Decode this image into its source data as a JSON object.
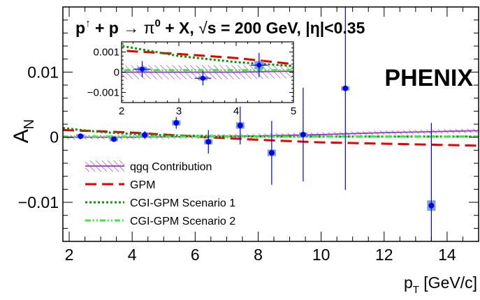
{
  "chart_data": {
    "type": "scatter",
    "title": "p↑ + p → π⁰ + X,  √s = 200 GeV, |η|<0.35",
    "title_parts": {
      "p": "p",
      "arrow_sup": "↑",
      "plus1": " + p ",
      "reaction_arrow": "→",
      "pi": " π",
      "pi_sup": "0",
      "rest": " + X,  ",
      "sqrt": "√",
      "energy": "s = 200 GeV, |η|<0.35"
    },
    "experiment_label": "PHENIX",
    "ylabel": "A",
    "ylabel_sub": "N",
    "xlabel": "p",
    "xlabel_sub": "T",
    "xlabel_unit": " [GeV/c]",
    "xlim": [
      1.8,
      15.0
    ],
    "ylim": [
      -0.016,
      0.02
    ],
    "xticks": [
      2,
      4,
      6,
      8,
      10,
      12,
      14
    ],
    "xtick_labels": [
      "2",
      "4",
      "6",
      "8",
      "10",
      "12",
      "14"
    ],
    "yticks": [
      -0.01,
      0,
      0.01
    ],
    "ytick_labels": [
      "−0.01",
      "0",
      "0.01"
    ],
    "data": {
      "name": "PHENIX",
      "color": "#0000ee",
      "sys_color": "#7b9fd0",
      "points": [
        {
          "x": 2.36,
          "y": 0.00015,
          "err": 0.0004,
          "sys": 0.00012
        },
        {
          "x": 3.42,
          "y": -0.0003,
          "err": 0.00035,
          "sys": 0.0001
        },
        {
          "x": 4.4,
          "y": 0.00035,
          "err": 0.0006,
          "sys": 0.0002
        },
        {
          "x": 5.4,
          "y": 0.0022,
          "err": 0.0009,
          "sys": 0.0004
        },
        {
          "x": 6.42,
          "y": -0.0007,
          "err": 0.0018,
          "sys": 0.0004
        },
        {
          "x": 7.43,
          "y": 0.0018,
          "err": 0.0029,
          "sys": 0.0005
        },
        {
          "x": 8.43,
          "y": -0.0024,
          "err": 0.0049,
          "sys": 0.0005
        },
        {
          "x": 9.43,
          "y": 0.0004,
          "err": 0.0072,
          "sys": 0.0003
        },
        {
          "x": 10.77,
          "y": 0.0075,
          "err": 0.0156,
          "sys": 0.0003
        },
        {
          "x": 13.5,
          "y": -0.0105,
          "err": 0.0127,
          "sys": 0.0008
        }
      ]
    },
    "curves": [
      {
        "name": "qgq Contribution",
        "color": "#9932cc",
        "style": "hatched-band",
        "x": [
          1.8,
          4,
          6,
          8,
          10,
          12,
          15
        ],
        "y": [
          0.0,
          0.0,
          0.0001,
          0.0002,
          0.0004,
          0.0007,
          0.001
        ],
        "band": 0.00035
      },
      {
        "name": "GPM",
        "color": "#e60000",
        "style": "long-dash",
        "x": [
          1.8,
          3,
          4,
          5,
          6,
          8,
          10,
          12,
          15
        ],
        "y": [
          0.0011,
          0.0009,
          0.0007,
          0.0004,
          0.0001,
          -0.0004,
          -0.0008,
          -0.001,
          -0.0013
        ]
      },
      {
        "name": "CGI-GPM Scenario 1",
        "color": "#009900",
        "style": "dotted",
        "x": [
          1.8,
          3,
          4,
          5,
          6,
          8,
          10,
          12,
          15
        ],
        "y": [
          0.0014,
          0.0008,
          0.0005,
          0.0003,
          0.0002,
          0.0001,
          0.0001,
          0.0001,
          0.0001
        ]
      },
      {
        "name": "CGI-GPM Scenario 2",
        "color": "#33ee33",
        "style": "dash-dot-dot",
        "x": [
          1.8,
          3,
          4,
          5,
          6,
          8,
          10,
          12,
          15
        ],
        "y": [
          0.0001,
          0.0001,
          0.0001,
          0.0001,
          0.0001,
          0.0001,
          0.0001,
          0.0001,
          0.0001
        ]
      }
    ],
    "legend": {
      "placement": "bottom-left",
      "entries": [
        "qgq Contribution",
        "GPM",
        "CGI-GPM Scenario 1",
        "CGI-GPM Scenario 2"
      ]
    },
    "inset": {
      "xlim": [
        2.0,
        5.0
      ],
      "ylim": [
        -0.0015,
        0.0015
      ],
      "xticks": [
        2,
        3,
        4,
        5
      ],
      "xtick_labels": [
        "2",
        "3",
        "4",
        "5"
      ],
      "yticks": [
        -0.001,
        0,
        0.001
      ],
      "ytick_labels": [
        "−0.001",
        "0",
        "0.001"
      ]
    }
  }
}
